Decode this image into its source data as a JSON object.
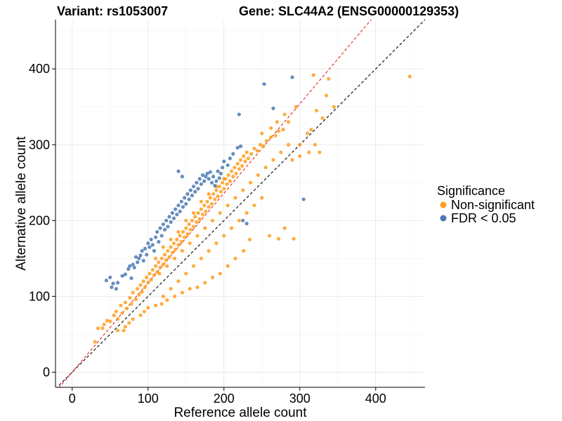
{
  "chart_data": {
    "type": "scatter",
    "title": {
      "variant": "Variant: rs1053007",
      "gene": "Gene: SLC44A2 (ENSG00000129353)"
    },
    "xlabel": "Reference allele count",
    "ylabel": "Alternative allele count",
    "xlim": [
      -22,
      465
    ],
    "ylim": [
      -20,
      465
    ],
    "x_ticks": [
      0,
      100,
      200,
      300,
      400
    ],
    "y_ticks": [
      0,
      100,
      200,
      300,
      400
    ],
    "grid": true,
    "legend": {
      "title": "Significance",
      "position": "right",
      "entries": [
        {
          "label": "Non-significant",
          "color": "#FF9D1F"
        },
        {
          "label": "FDR < 0.05",
          "color": "#4A7AB3"
        }
      ]
    },
    "reference_lines": [
      {
        "name": "identity",
        "slope": 1.0,
        "intercept": 0,
        "color": "#000000",
        "style": "dashed"
      },
      {
        "name": "fitted",
        "slope": 1.18,
        "intercept": 0,
        "color": "#E8201C",
        "style": "dashed"
      }
    ],
    "series": [
      {
        "name": "FDR < 0.05",
        "color": "#4A7AB3",
        "points": [
          [
            45,
            121
          ],
          [
            50,
            125
          ],
          [
            52,
            112
          ],
          [
            54,
            117
          ],
          [
            58,
            110
          ],
          [
            60,
            118
          ],
          [
            66,
            127
          ],
          [
            70,
            129
          ],
          [
            74,
            136
          ],
          [
            76,
            140
          ],
          [
            78,
            124
          ],
          [
            80,
            142
          ],
          [
            82,
            138
          ],
          [
            84,
            152
          ],
          [
            86,
            145
          ],
          [
            88,
            150
          ],
          [
            90,
            154
          ],
          [
            92,
            160
          ],
          [
            94,
            147
          ],
          [
            96,
            163
          ],
          [
            98,
            155
          ],
          [
            100,
            170
          ],
          [
            102,
            165
          ],
          [
            104,
            175
          ],
          [
            106,
            168
          ],
          [
            108,
            160
          ],
          [
            110,
            178
          ],
          [
            112,
            185
          ],
          [
            114,
            172
          ],
          [
            116,
            190
          ],
          [
            118,
            180
          ],
          [
            120,
            195
          ],
          [
            122,
            188
          ],
          [
            124,
            200
          ],
          [
            126,
            192
          ],
          [
            128,
            205
          ],
          [
            130,
            198
          ],
          [
            132,
            210
          ],
          [
            134,
            203
          ],
          [
            136,
            215
          ],
          [
            138,
            208
          ],
          [
            140,
            220
          ],
          [
            142,
            212
          ],
          [
            144,
            225
          ],
          [
            146,
            218
          ],
          [
            148,
            230
          ],
          [
            150,
            222
          ],
          [
            152,
            235
          ],
          [
            154,
            228
          ],
          [
            156,
            240
          ],
          [
            158,
            233
          ],
          [
            160,
            245
          ],
          [
            162,
            238
          ],
          [
            164,
            250
          ],
          [
            166,
            242
          ],
          [
            168,
            255
          ],
          [
            170,
            248
          ],
          [
            172,
            260
          ],
          [
            174,
            252
          ],
          [
            176,
            258
          ],
          [
            178,
            262
          ],
          [
            180,
            255
          ],
          [
            182,
            264
          ],
          [
            184,
            250
          ],
          [
            186,
            258
          ],
          [
            188,
            246
          ],
          [
            190,
            252
          ],
          [
            192,
            265
          ],
          [
            194,
            256
          ],
          [
            196,
            262
          ],
          [
            198,
            270
          ],
          [
            200,
            278
          ],
          [
            205,
            273
          ],
          [
            208,
            282
          ],
          [
            212,
            288
          ],
          [
            218,
            296
          ],
          [
            222,
            298
          ],
          [
            140,
            265
          ],
          [
            145,
            258
          ],
          [
            220,
            340
          ],
          [
            253,
            380
          ],
          [
            265,
            348
          ],
          [
            290,
            389
          ],
          [
            305,
            228
          ],
          [
            225,
            200
          ],
          [
            230,
            196
          ]
        ]
      },
      {
        "name": "Non-significant",
        "color": "#FF9D1F",
        "points": [
          [
            30,
            40
          ],
          [
            34,
            58
          ],
          [
            40,
            58
          ],
          [
            42,
            63
          ],
          [
            46,
            68
          ],
          [
            50,
            67
          ],
          [
            55,
            75
          ],
          [
            58,
            80
          ],
          [
            60,
            70
          ],
          [
            64,
            88
          ],
          [
            66,
            78
          ],
          [
            70,
            92
          ],
          [
            72,
            84
          ],
          [
            76,
            98
          ],
          [
            78,
            90
          ],
          [
            80,
            105
          ],
          [
            84,
            96
          ],
          [
            86,
            110
          ],
          [
            88,
            102
          ],
          [
            90,
            115
          ],
          [
            92,
            106
          ],
          [
            94,
            120
          ],
          [
            96,
            112
          ],
          [
            98,
            125
          ],
          [
            100,
            118
          ],
          [
            102,
            130
          ],
          [
            104,
            122
          ],
          [
            106,
            135
          ],
          [
            108,
            128
          ],
          [
            110,
            140
          ],
          [
            112,
            132
          ],
          [
            114,
            145
          ],
          [
            116,
            138
          ],
          [
            118,
            150
          ],
          [
            120,
            142
          ],
          [
            122,
            155
          ],
          [
            124,
            148
          ],
          [
            126,
            160
          ],
          [
            128,
            152
          ],
          [
            130,
            165
          ],
          [
            132,
            158
          ],
          [
            134,
            170
          ],
          [
            136,
            162
          ],
          [
            138,
            175
          ],
          [
            140,
            168
          ],
          [
            142,
            180
          ],
          [
            144,
            172
          ],
          [
            146,
            185
          ],
          [
            148,
            178
          ],
          [
            150,
            190
          ],
          [
            152,
            182
          ],
          [
            154,
            195
          ],
          [
            156,
            188
          ],
          [
            158,
            200
          ],
          [
            160,
            192
          ],
          [
            162,
            205
          ],
          [
            164,
            198
          ],
          [
            166,
            210
          ],
          [
            168,
            202
          ],
          [
            170,
            215
          ],
          [
            172,
            208
          ],
          [
            174,
            220
          ],
          [
            176,
            212
          ],
          [
            178,
            225
          ],
          [
            180,
            218
          ],
          [
            182,
            230
          ],
          [
            184,
            222
          ],
          [
            186,
            235
          ],
          [
            188,
            228
          ],
          [
            190,
            240
          ],
          [
            192,
            232
          ],
          [
            194,
            245
          ],
          [
            196,
            238
          ],
          [
            198,
            250
          ],
          [
            200,
            242
          ],
          [
            202,
            255
          ],
          [
            204,
            248
          ],
          [
            206,
            260
          ],
          [
            208,
            252
          ],
          [
            210,
            265
          ],
          [
            212,
            258
          ],
          [
            214,
            270
          ],
          [
            216,
            262
          ],
          [
            218,
            275
          ],
          [
            220,
            268
          ],
          [
            222,
            280
          ],
          [
            224,
            272
          ],
          [
            226,
            285
          ],
          [
            228,
            278
          ],
          [
            230,
            290
          ],
          [
            232,
            282
          ],
          [
            236,
            288
          ],
          [
            240,
            295
          ],
          [
            244,
            292
          ],
          [
            248,
            300
          ],
          [
            252,
            298
          ],
          [
            256,
            305
          ],
          [
            262,
            310
          ],
          [
            268,
            312
          ],
          [
            272,
            318
          ],
          [
            278,
            320
          ],
          [
            285,
            330
          ],
          [
            300,
            300
          ],
          [
            312,
            290
          ],
          [
            320,
            300
          ],
          [
            326,
            290
          ],
          [
            318,
            392
          ],
          [
            338,
            387
          ],
          [
            345,
            350
          ],
          [
            445,
            390
          ],
          [
            260,
            180
          ],
          [
            272,
            176
          ],
          [
            280,
            190
          ],
          [
            292,
            176
          ],
          [
            234,
            175
          ],
          [
            226,
            160
          ],
          [
            215,
            150
          ],
          [
            205,
            140
          ],
          [
            195,
            130
          ],
          [
            185,
            125
          ],
          [
            175,
            118
          ],
          [
            165,
            112
          ],
          [
            155,
            110
          ],
          [
            145,
            105
          ],
          [
            135,
            100
          ],
          [
            125,
            95
          ],
          [
            118,
            90
          ],
          [
            110,
            88
          ],
          [
            100,
            85
          ],
          [
            95,
            80
          ],
          [
            90,
            75
          ],
          [
            80,
            70
          ],
          [
            75,
            65
          ],
          [
            70,
            60
          ],
          [
            68,
            55
          ],
          [
            60,
            55
          ],
          [
            120,
            100
          ],
          [
            130,
            110
          ],
          [
            140,
            120
          ],
          [
            150,
            130
          ],
          [
            160,
            140
          ],
          [
            170,
            150
          ],
          [
            180,
            160
          ],
          [
            190,
            170
          ],
          [
            200,
            180
          ],
          [
            210,
            190
          ],
          [
            220,
            200
          ],
          [
            230,
            210
          ],
          [
            240,
            220
          ],
          [
            250,
            230
          ],
          [
            110,
            150
          ],
          [
            120,
            165
          ],
          [
            130,
            175
          ],
          [
            140,
            185
          ],
          [
            150,
            200
          ],
          [
            160,
            210
          ],
          [
            170,
            225
          ],
          [
            180,
            235
          ],
          [
            190,
            245
          ],
          [
            200,
            255
          ],
          [
            115,
            130
          ],
          [
            125,
            140
          ],
          [
            135,
            150
          ],
          [
            145,
            160
          ],
          [
            155,
            170
          ],
          [
            165,
            180
          ],
          [
            175,
            190
          ],
          [
            185,
            200
          ],
          [
            195,
            210
          ],
          [
            205,
            220
          ],
          [
            215,
            230
          ],
          [
            225,
            240
          ],
          [
            235,
            250
          ],
          [
            245,
            260
          ],
          [
            255,
            270
          ],
          [
            265,
            280
          ],
          [
            275,
            290
          ],
          [
            285,
            300
          ],
          [
            290,
            280
          ],
          [
            300,
            285
          ],
          [
            310,
            315
          ],
          [
            315,
            320
          ],
          [
            330,
            335
          ],
          [
            322,
            345
          ],
          [
            335,
            365
          ],
          [
            295,
            350
          ],
          [
            280,
            340
          ],
          [
            270,
            330
          ],
          [
            262,
            322
          ],
          [
            250,
            315
          ]
        ]
      }
    ]
  }
}
